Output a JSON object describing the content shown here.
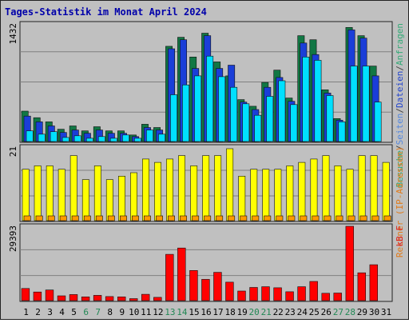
{
  "chart_data": {
    "type": "bar",
    "title": "Tages-Statistik im Monat April 2024",
    "categories": [
      "1",
      "2",
      "3",
      "4",
      "5",
      "6",
      "7",
      "8",
      "9",
      "10",
      "11",
      "12",
      "13",
      "14",
      "15",
      "16",
      "17",
      "18",
      "19",
      "20",
      "21",
      "22",
      "23",
      "24",
      "25",
      "26",
      "27",
      "28",
      "29",
      "30",
      "31"
    ],
    "weekend_days": [
      "6",
      "7",
      "13",
      "14",
      "20",
      "21",
      "27",
      "28"
    ],
    "grid": true,
    "panels": [
      {
        "id": "top",
        "ylabel_max": "1432",
        "ymax": 1432,
        "ylim": [
          0,
          1432
        ],
        "legend_text": "Besuche/Seiten/Dateien/Anfragen",
        "legend_parts": [
          {
            "text": "Besuche",
            "color": "#33aa77"
          },
          {
            "text": "/",
            "color": "#444444"
          },
          {
            "text": "Seiten",
            "color": "#5588dd"
          },
          {
            "text": "/",
            "color": "#444444"
          },
          {
            "text": "Dateien",
            "color": "#2244cc"
          },
          {
            "text": "/",
            "color": "#444444"
          },
          {
            "text": "Anfragen",
            "color": "#33aa77"
          }
        ],
        "series": [
          {
            "color": "#117744",
            "values": [
              370,
              290,
              240,
              150,
              190,
              130,
              180,
              130,
              130,
              80,
              210,
              170,
              1160,
              1270,
              1030,
              1320,
              970,
              800,
              510,
              430,
              720,
              870,
              530,
              1290,
              1240,
              630,
              280,
              1390,
              1290,
              920,
              0
            ]
          },
          {
            "color": "#1a3ed8",
            "values": [
              310,
              240,
              190,
              110,
              140,
              100,
              140,
              100,
              100,
              60,
              170,
              140,
              1130,
              1240,
              890,
              1290,
              890,
              930,
              480,
              390,
              660,
              780,
              490,
              1200,
              1060,
              590,
              260,
              1360,
              1260,
              800,
              0
            ]
          },
          {
            "color": "#00e0ff",
            "values": [
              130,
              90,
              120,
              50,
              70,
              40,
              60,
              40,
              80,
              40,
              140,
              90,
              570,
              690,
              800,
              1040,
              790,
              660,
              460,
              320,
              550,
              740,
              450,
              1030,
              990,
              560,
              240,
              920,
              920,
              480,
              0
            ]
          }
        ]
      },
      {
        "id": "middle",
        "ylabel_max": "21",
        "ymax": 21,
        "ylim": [
          0,
          21
        ],
        "legend_text": "Rechner (IP-Adressen)",
        "legend_color": "#e07a1a",
        "series": [
          {
            "color": "#ffff00",
            "values": [
              15,
              16,
              16,
              15,
              19,
              12,
              16,
              12,
              13,
              14,
              18,
              17,
              18,
              19,
              16,
              19,
              19,
              21,
              13,
              15,
              15,
              15,
              16,
              17,
              18,
              19,
              16,
              15,
              19,
              19,
              17
            ]
          },
          {
            "color": "#ff9900",
            "values": [
              1,
              1,
              1,
              1,
              1,
              1,
              1,
              1,
              1,
              1,
              1,
              1,
              1,
              1,
              1,
              1,
              1,
              1,
              1,
              1,
              1,
              1,
              1,
              1,
              1,
              1,
              1,
              1,
              1,
              1,
              1
            ]
          }
        ]
      },
      {
        "id": "bottom",
        "ylabel_max": "29393",
        "ymax": 29393,
        "ylim": [
          0,
          29393
        ],
        "legend_text": "kB F",
        "legend_color": "#dd2222",
        "series": [
          {
            "color": "#ff0000",
            "values": [
              4800,
              3400,
              4200,
              1900,
              2400,
              1500,
              2100,
              1600,
              1500,
              800,
              2500,
              1300,
              18300,
              20800,
              11900,
              8400,
              11200,
              7300,
              3800,
              5200,
              5500,
              5100,
              3500,
              5500,
              7600,
              2900,
              3000,
              29393,
              11000,
              14200,
              0
            ]
          }
        ]
      }
    ]
  }
}
